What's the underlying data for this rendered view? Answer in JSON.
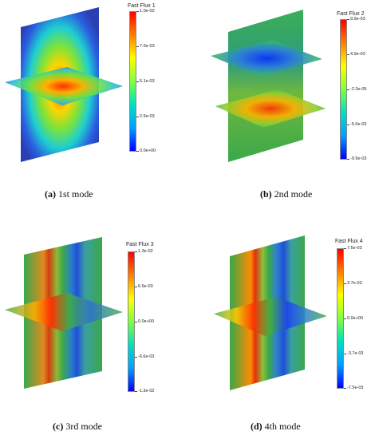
{
  "panels": [
    {
      "caption_label": "(a)",
      "caption_text": " 1st mode",
      "colorbar": {
        "title": "Fast Flux 1",
        "ticks": [
          "1.0e-02",
          "7.6e-03",
          "5.1e-03",
          "2.5e-03",
          "0.0e+00"
        ]
      }
    },
    {
      "caption_label": "(b)",
      "caption_text": " 2nd mode",
      "colorbar": {
        "title": "Fast Flux 2",
        "ticks": [
          "9.9e-03",
          "4.9e-03",
          "-2.3e-05",
          "-5.0e-03",
          "-9.9e-03"
        ]
      }
    },
    {
      "caption_label": "(c)",
      "caption_text": " 3rd mode",
      "colorbar": {
        "title": "Fast Flux 3",
        "ticks": [
          "1.3e-02",
          "6.6e-03",
          "0.0e+00",
          "-6.6e-03",
          "-1.3e-02"
        ]
      }
    },
    {
      "caption_label": "(d)",
      "caption_text": " 4th mode",
      "colorbar": {
        "title": "Fast Flux 4",
        "ticks": [
          "7.5e-03",
          "3.7e-03",
          "0.0e+00",
          "-3.7e-03",
          "-7.5e-03"
        ]
      }
    }
  ],
  "colors": {
    "low": "#0000ff",
    "mid": "#22b14c",
    "high": "#ff0000",
    "plane_green": "#3aa84a"
  }
}
